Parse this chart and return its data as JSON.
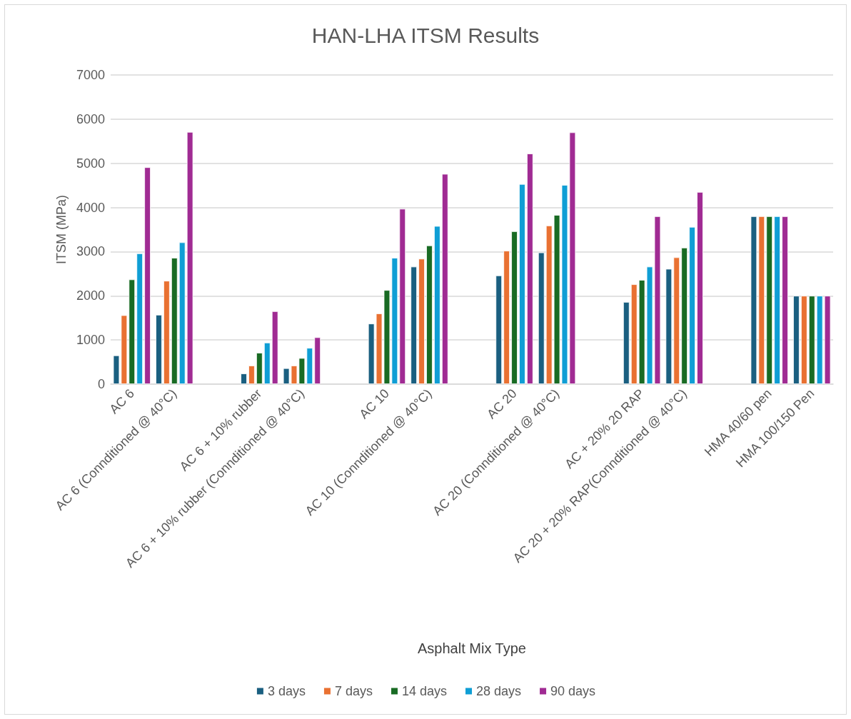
{
  "chart_data": {
    "type": "bar",
    "title": "HAN-LHA ITSM Results",
    "xlabel": "Asphalt Mix Type",
    "ylabel": "ITSM (MPa)",
    "categories": [
      "AC 6",
      "AC 6 (Connditioned @ 40°C)",
      null,
      "AC 6 + 10% rubber",
      "AC 6 + 10% rubber (Connditioned @ 40°C)",
      null,
      "AC 10",
      "AC 10 (Connditioned @ 40°C)",
      null,
      "AC 20",
      "AC 20 (Connditioned @ 40°C)",
      null,
      "AC + 20% 20 RAP",
      "AC 20 + 20% RAP(Connditioned @ 40°C)",
      null,
      "HMA 40/60 pen",
      "HMA 100/150 Pen"
    ],
    "series": [
      {
        "name": "3 days",
        "color": "#1a5f80",
        "values": [
          650,
          1570,
          null,
          240,
          360,
          null,
          1370,
          2660,
          null,
          2460,
          2980,
          null,
          1860,
          2610,
          null,
          3800,
          2000
        ]
      },
      {
        "name": "7 days",
        "color": "#e97132",
        "values": [
          1560,
          2340,
          null,
          420,
          420,
          null,
          1600,
          2840,
          null,
          3020,
          3590,
          null,
          2260,
          2870,
          null,
          3800,
          2000
        ]
      },
      {
        "name": "14 days",
        "color": "#196b24",
        "values": [
          2370,
          2860,
          null,
          710,
          590,
          null,
          2130,
          3140,
          null,
          3460,
          3830,
          null,
          2360,
          3090,
          null,
          3800,
          2000
        ]
      },
      {
        "name": "28 days",
        "color": "#0f9ed5",
        "values": [
          2960,
          3210,
          null,
          940,
          820,
          null,
          2860,
          3580,
          null,
          4530,
          4510,
          null,
          2660,
          3560,
          null,
          3800,
          2000
        ]
      },
      {
        "name": "90 days",
        "color": "#a02b93",
        "values": [
          4910,
          5710,
          null,
          1650,
          1060,
          null,
          3970,
          4760,
          null,
          5220,
          5700,
          null,
          3800,
          4350,
          null,
          3800,
          2000
        ]
      }
    ],
    "ylim": [
      0,
      7000
    ],
    "yticks": [
      0,
      1000,
      2000,
      3000,
      4000,
      5000,
      6000,
      7000
    ],
    "grid": "y",
    "legend": "bottom"
  }
}
